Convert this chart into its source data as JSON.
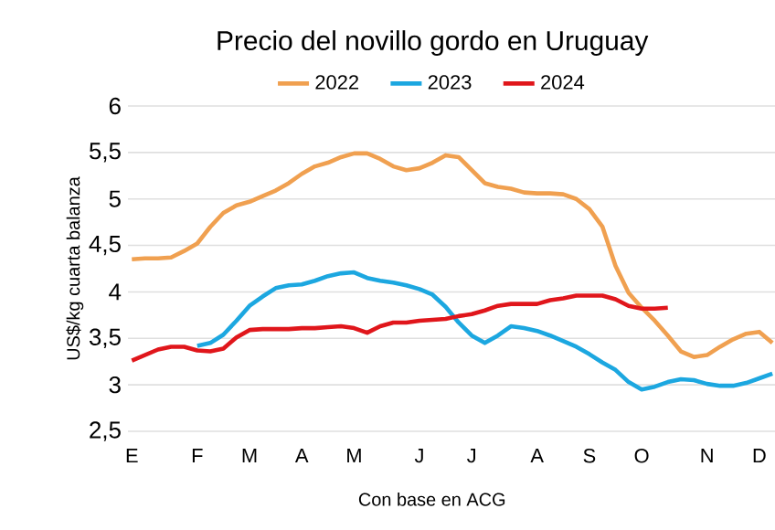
{
  "chart_data": {
    "type": "line",
    "title": "Precio del novillo gordo en Uruguay",
    "ylabel": "US$/kg cuarta balanza",
    "annotations": [
      "Con base en ACG"
    ],
    "categories": [
      "E",
      null,
      null,
      null,
      null,
      "F",
      null,
      null,
      null,
      "M",
      null,
      null,
      null,
      "A",
      null,
      null,
      null,
      "M",
      null,
      null,
      null,
      null,
      "J",
      null,
      null,
      null,
      "J",
      null,
      null,
      null,
      null,
      "A",
      null,
      null,
      null,
      "S",
      null,
      null,
      null,
      "O",
      null,
      null,
      null,
      null,
      "N",
      null,
      null,
      null,
      "D",
      null
    ],
    "series": [
      {
        "name": "2022",
        "color": "#f0a050",
        "values": [
          4.35,
          4.36,
          4.36,
          4.37,
          4.44,
          4.52,
          4.7,
          4.85,
          4.93,
          4.97,
          5.03,
          5.09,
          5.17,
          5.27,
          5.35,
          5.39,
          5.45,
          5.49,
          5.49,
          5.43,
          5.35,
          5.31,
          5.33,
          5.39,
          5.47,
          5.45,
          5.31,
          5.17,
          5.13,
          5.11,
          5.07,
          5.06,
          5.06,
          5.05,
          5.0,
          4.89,
          4.7,
          4.28,
          3.99,
          3.83,
          3.69,
          3.53,
          3.36,
          3.3,
          3.32,
          3.41,
          3.49,
          3.55,
          3.57,
          3.45
        ]
      },
      {
        "name": "2023",
        "color": "#1ca7e0",
        "values": [
          null,
          null,
          null,
          null,
          null,
          3.42,
          3.45,
          3.54,
          3.69,
          3.85,
          3.95,
          4.04,
          4.07,
          4.08,
          4.12,
          4.17,
          4.2,
          4.21,
          4.15,
          4.12,
          4.1,
          4.07,
          4.03,
          3.97,
          3.84,
          3.67,
          3.53,
          3.45,
          3.53,
          3.63,
          3.61,
          3.58,
          3.53,
          3.47,
          3.41,
          3.33,
          3.24,
          3.16,
          3.03,
          2.95,
          2.98,
          3.03,
          3.06,
          3.05,
          3.01,
          2.99,
          2.99,
          3.02,
          3.07,
          3.12
        ]
      },
      {
        "name": "2024",
        "color": "#e0161b",
        "values": [
          3.26,
          3.32,
          3.38,
          3.41,
          3.41,
          3.37,
          3.36,
          3.39,
          3.51,
          3.59,
          3.6,
          3.6,
          3.6,
          3.61,
          3.61,
          3.62,
          3.63,
          3.61,
          3.56,
          3.63,
          3.67,
          3.67,
          3.69,
          3.7,
          3.71,
          3.74,
          3.76,
          3.8,
          3.85,
          3.87,
          3.87,
          3.87,
          3.91,
          3.93,
          3.96,
          3.96,
          3.96,
          3.92,
          3.85,
          3.82,
          3.82,
          3.83,
          null,
          null,
          null,
          null,
          null,
          null,
          null,
          null
        ]
      }
    ],
    "ylim": [
      2.5,
      6
    ],
    "yticks": [
      {
        "value": 2.5,
        "label": "2,5"
      },
      3,
      {
        "value": 3.5,
        "label": "3,5"
      },
      4,
      {
        "value": 4.5,
        "label": "4,5"
      },
      5,
      {
        "value": 5.5,
        "label": "5,5"
      },
      6
    ],
    "grid": "y",
    "legend": "top",
    "marker": "none",
    "line_style": "solid"
  }
}
